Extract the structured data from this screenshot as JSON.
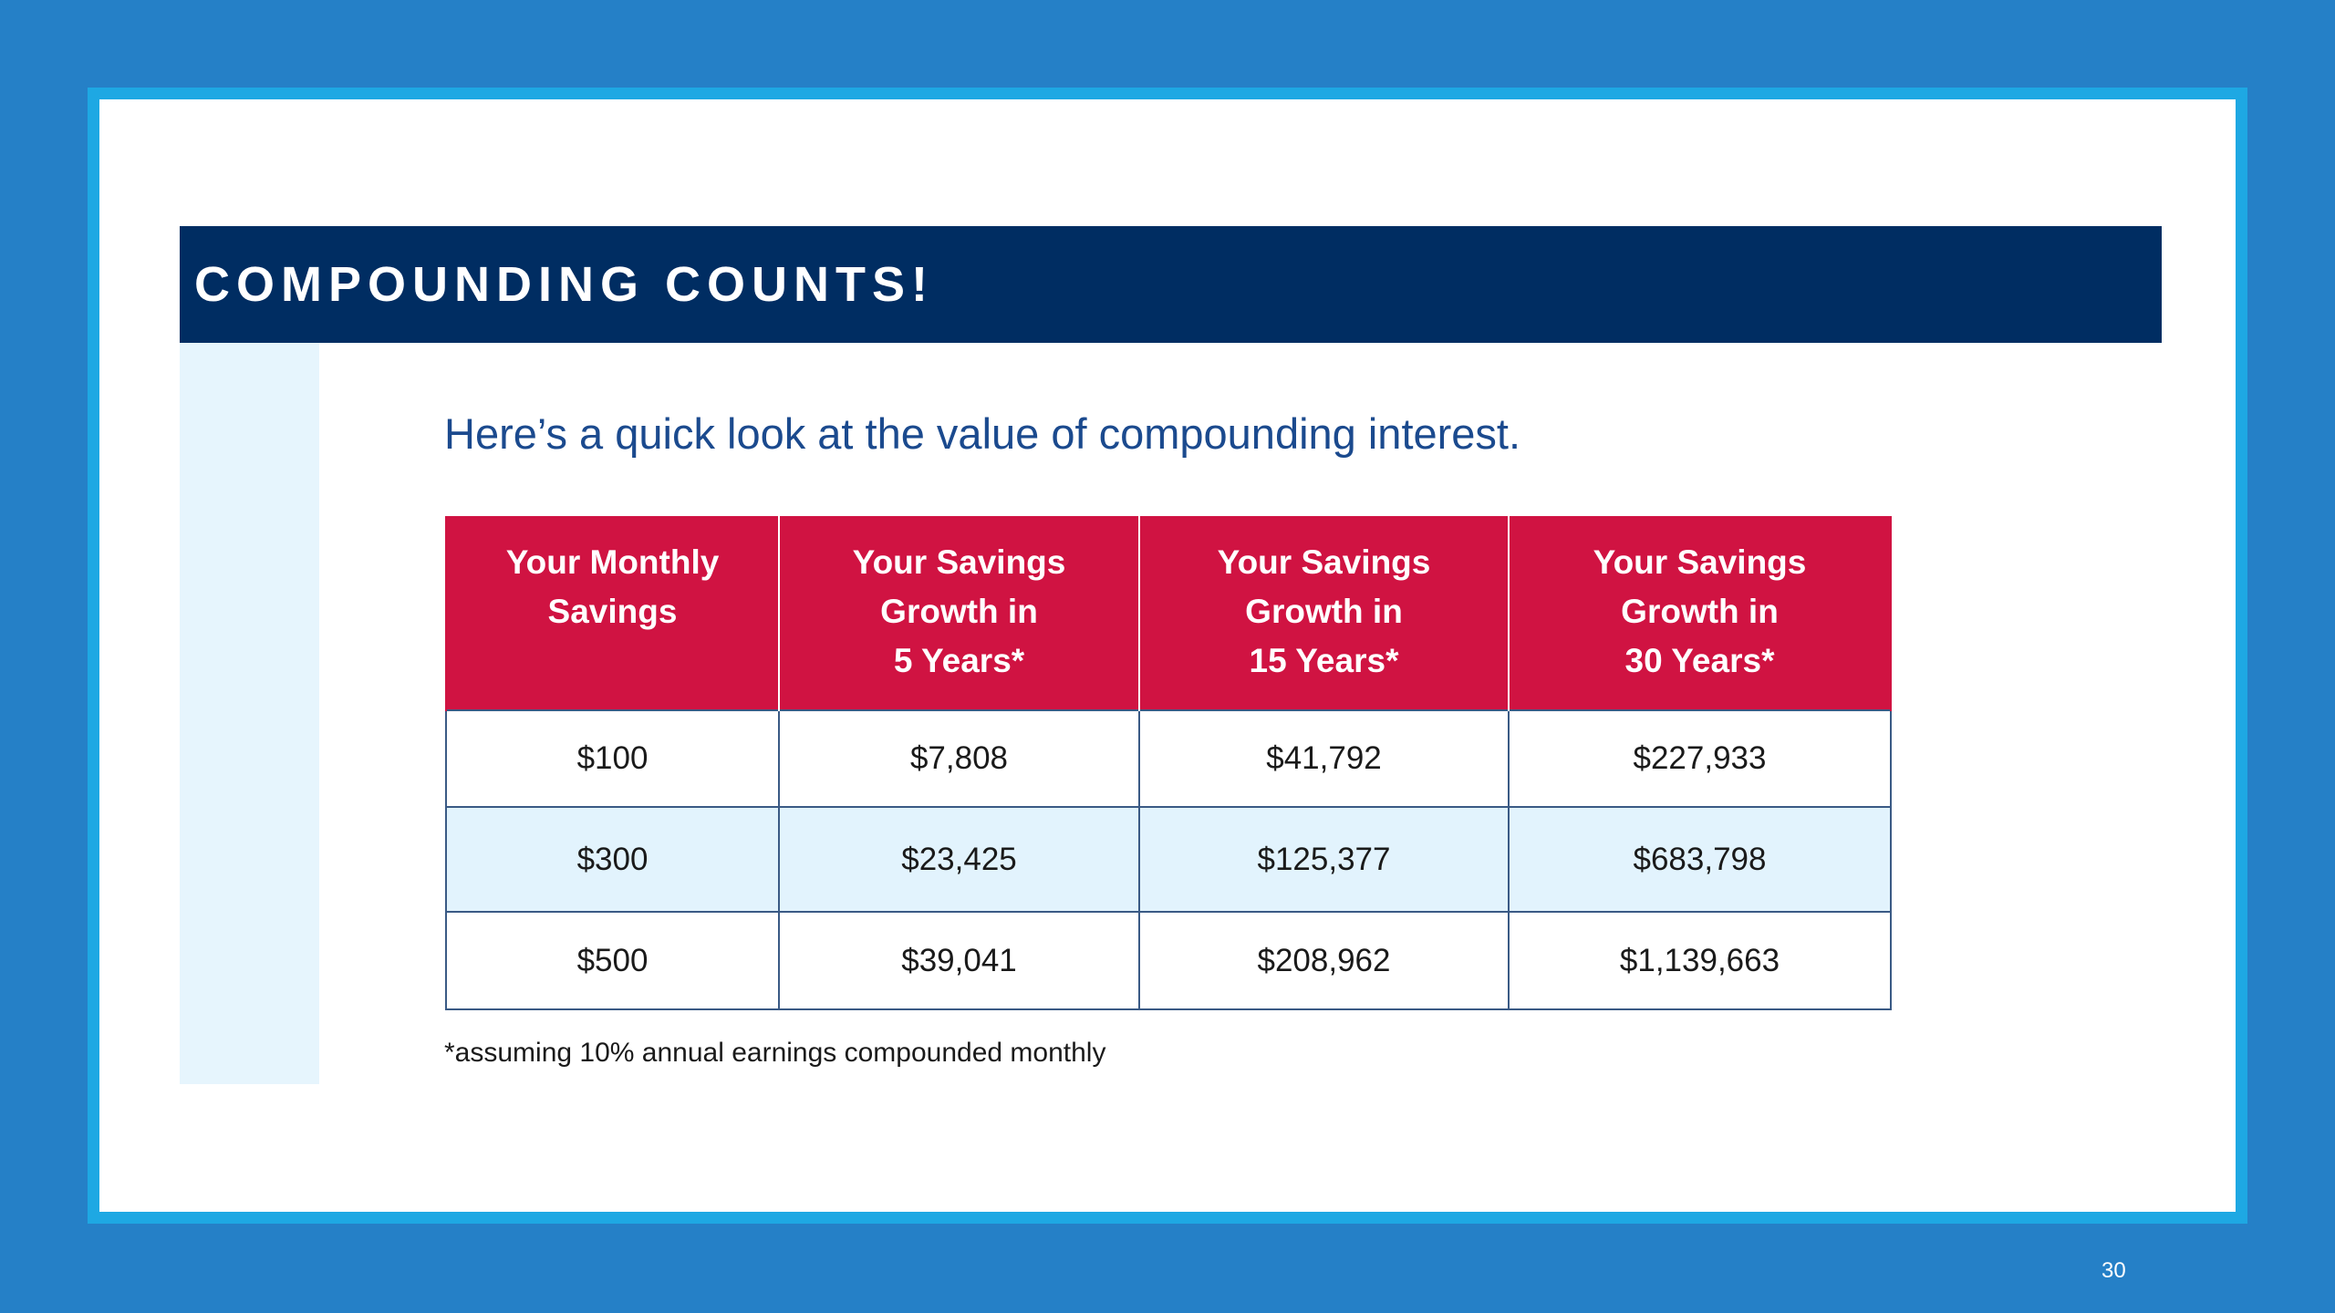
{
  "slide": {
    "title": "COMPOUNDING COUNTS!",
    "intro": "Here’s a quick look at the value of compounding interest.",
    "footnote": "*assuming 10% annual earnings compounded monthly",
    "page_number": "30"
  },
  "table": {
    "headers": [
      "Your Monthly\nSavings",
      "Your Savings\nGrowth in\n5 Years*",
      "Your Savings\nGrowth in\n15 Years*",
      "Your Savings\nGrowth in\n30 Years*"
    ],
    "rows": [
      [
        "$100",
        "$7,808",
        "$41,792",
        "$227,933"
      ],
      [
        "$300",
        "$23,425",
        "$125,377",
        "$683,798"
      ],
      [
        "$500",
        "$39,041",
        "$208,962",
        "$1,139,663"
      ]
    ]
  },
  "colors": {
    "background": "#2580c7",
    "frame_border": "#1ea8e3",
    "title_band": "#002d62",
    "header_red": "#d01342",
    "row_highlight": "#e2f3fd",
    "intro_text": "#1b4a8e"
  }
}
